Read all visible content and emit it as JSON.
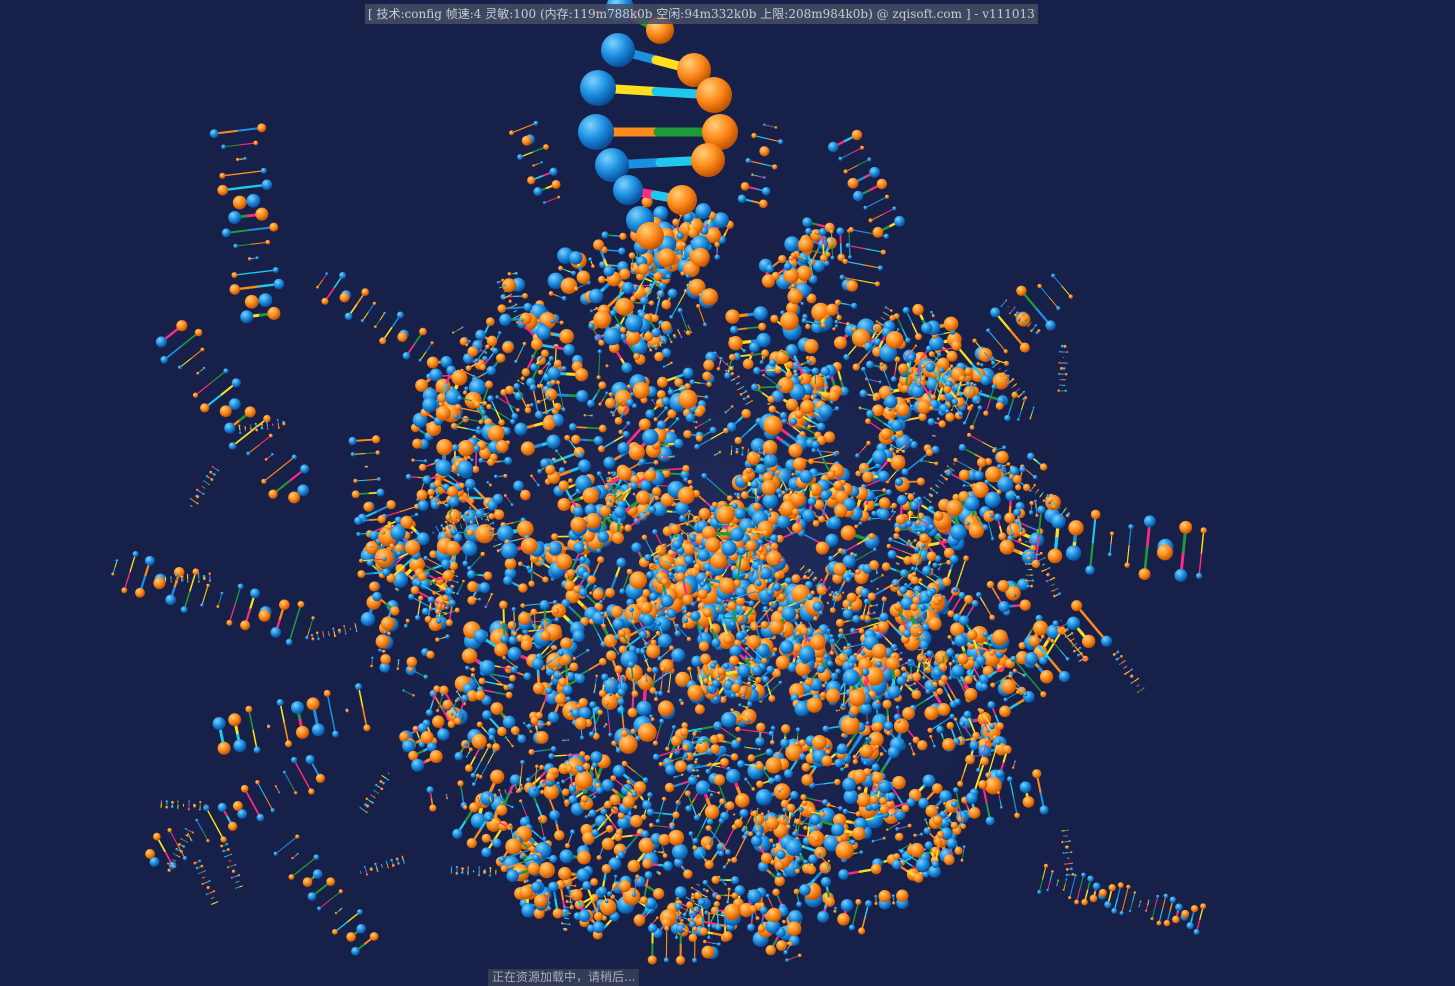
{
  "app": {
    "status_text": "[ 技术:config 帧速:4 灵敏:100 (内存:119m788k0b 空闲:94m332k0b 上限:208m984k0b) @ zqisoft.com ] - v111013",
    "loading_text": "正在资源加载中，请稍后..."
  },
  "scene": {
    "background_color": "#172048",
    "subject": "dna-helix-cluster",
    "palette": {
      "blue": "#1c8fe0",
      "orange": "#ff8a1c",
      "yellow": "#ffe020",
      "pink": "#ff2a82",
      "green": "#1f9a3a",
      "cyan": "#20c8ee"
    }
  }
}
